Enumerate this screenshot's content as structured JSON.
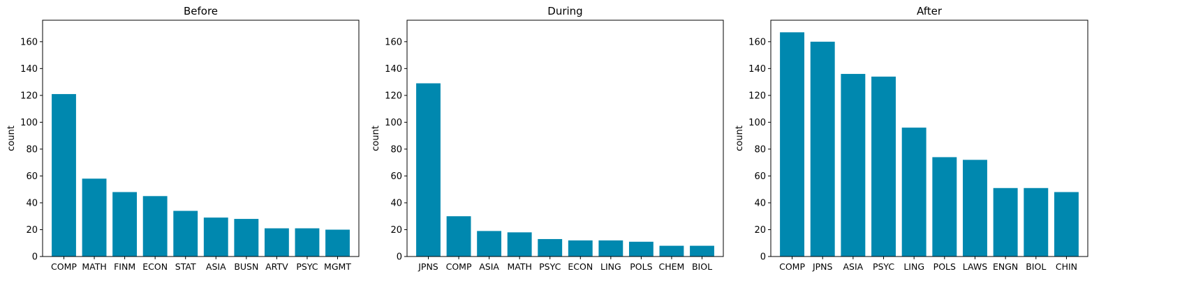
{
  "bar_color": "#0088AF",
  "chart_data": [
    {
      "type": "bar",
      "title": "Before",
      "xlabel": "",
      "ylabel": "count",
      "ylim": [
        0,
        176
      ],
      "yticks": [
        0,
        20,
        40,
        60,
        80,
        100,
        120,
        140,
        160
      ],
      "categories": [
        "COMP",
        "MATH",
        "FINM",
        "ECON",
        "STAT",
        "ASIA",
        "BUSN",
        "ARTV",
        "PSYC",
        "MGMT"
      ],
      "values": [
        121,
        58,
        48,
        45,
        34,
        29,
        28,
        21,
        21,
        20
      ]
    },
    {
      "type": "bar",
      "title": "During",
      "xlabel": "",
      "ylabel": "count",
      "ylim": [
        0,
        176
      ],
      "yticks": [
        0,
        20,
        40,
        60,
        80,
        100,
        120,
        140,
        160
      ],
      "categories": [
        "JPNS",
        "COMP",
        "ASIA",
        "MATH",
        "PSYC",
        "ECON",
        "LING",
        "POLS",
        "CHEM",
        "BIOL"
      ],
      "values": [
        129,
        30,
        19,
        18,
        13,
        12,
        12,
        11,
        8,
        8
      ]
    },
    {
      "type": "bar",
      "title": "After",
      "xlabel": "",
      "ylabel": "count",
      "ylim": [
        0,
        176
      ],
      "yticks": [
        0,
        20,
        40,
        60,
        80,
        100,
        120,
        140,
        160
      ],
      "categories": [
        "COMP",
        "JPNS",
        "ASIA",
        "PSYC",
        "LING",
        "POLS",
        "LAWS",
        "ENGN",
        "BIOL",
        "CHIN"
      ],
      "values": [
        167,
        160,
        136,
        134,
        96,
        74,
        72,
        51,
        51,
        48
      ]
    }
  ]
}
